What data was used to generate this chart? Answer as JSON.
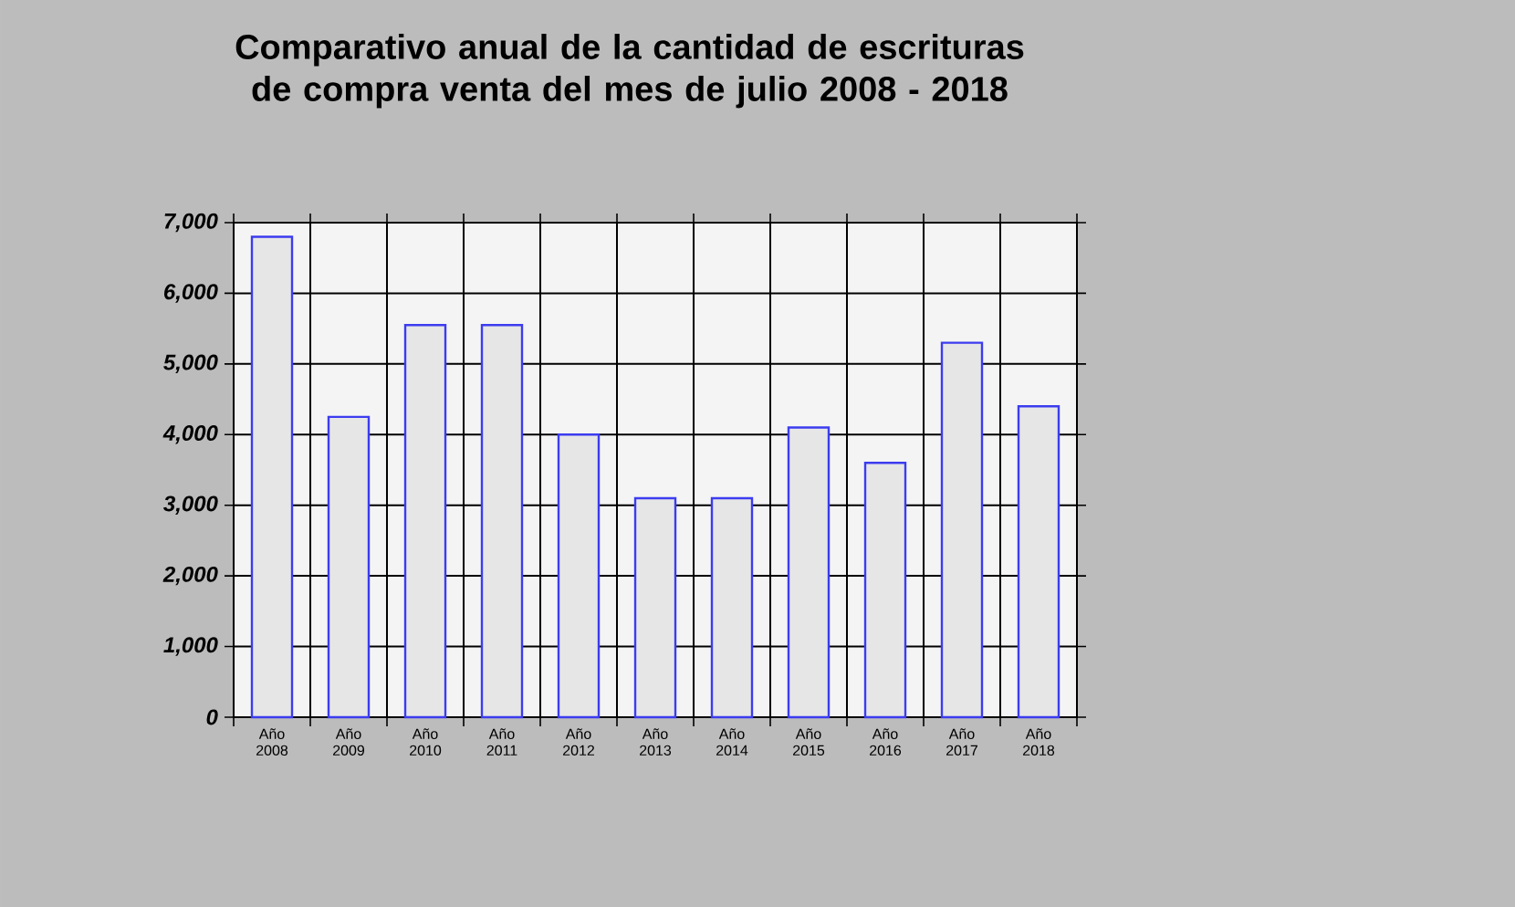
{
  "chart_data": {
    "type": "bar",
    "title": "Comparativo anual de la cantidad de escrituras de compra venta del mes de julio 2008 - 2018",
    "categories": [
      "Año 2008",
      "Año 2009",
      "Año 2010",
      "Año 2011",
      "Año 2012",
      "Año 2013",
      "Año 2014",
      "Año 2015",
      "Año 2016",
      "Año 2017",
      "Año 2018"
    ],
    "values": [
      6800,
      4250,
      5550,
      5550,
      4000,
      3100,
      3100,
      4100,
      3600,
      5300,
      4400
    ],
    "color": "#e6e6e6",
    "ylim": [
      0,
      7000
    ],
    "yticks": [
      0,
      {
        "value": 1000,
        "label": "1,000"
      },
      {
        "value": 2000,
        "label": "2,000"
      },
      {
        "value": 3000,
        "label": "3,000"
      },
      {
        "value": 4000,
        "label": "4,000"
      },
      {
        "value": 5000,
        "label": "5,000"
      },
      {
        "value": 6000,
        "label": "6,000"
      },
      {
        "value": 7000,
        "label": "7,000"
      }
    ],
    "grid": true
  }
}
